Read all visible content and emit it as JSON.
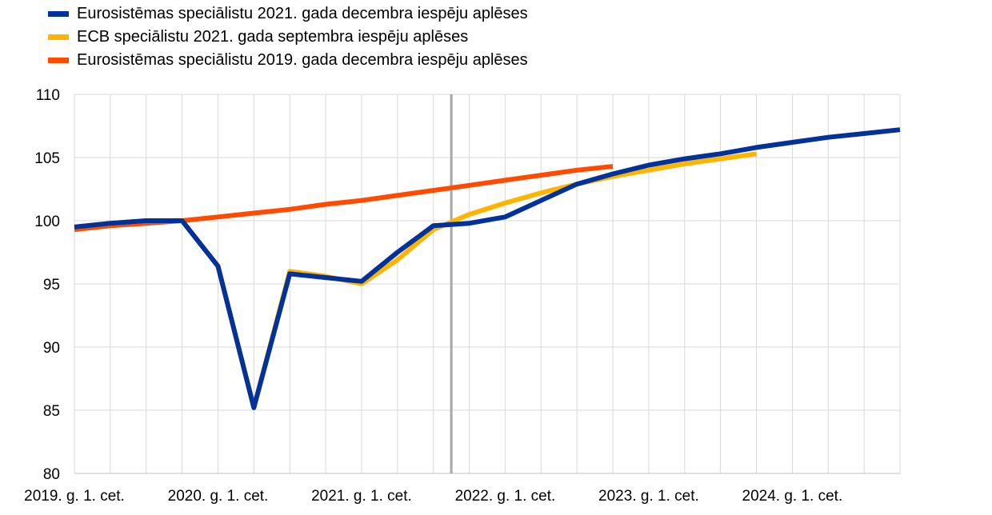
{
  "chart_data": {
    "type": "line",
    "title": "",
    "xlabel": "",
    "ylabel": "",
    "ylim": [
      80,
      110
    ],
    "yticks": [
      80,
      85,
      90,
      95,
      100,
      105,
      110
    ],
    "x_tick_labels": [
      "2019. g. 1. cet.",
      "2020. g. 1. cet.",
      "2021. g. 1. cet.",
      "2022. g. 1. cet.",
      "2023. g. 1. cet.",
      "2024. g. 1. cet."
    ],
    "x_tick_label_quarter_index": [
      0,
      4,
      8,
      12,
      16,
      20
    ],
    "quarters_count": 24,
    "vertical_marker_quarter_index": 10.5,
    "grid": true,
    "legend_position": "top-left",
    "series": [
      {
        "name": "Eurosistēmas speciālistu 2021. gada decembra iespēju aplēses",
        "color": "#003299",
        "values": [
          99.5,
          99.8,
          100.0,
          100.0,
          96.4,
          85.2,
          95.8,
          95.5,
          95.2,
          97.5,
          99.6,
          99.8,
          100.3,
          101.6,
          102.9,
          103.7,
          104.4,
          104.9,
          105.3,
          105.8,
          106.2,
          106.6,
          106.9,
          107.2
        ]
      },
      {
        "name": "ECB speciālistu 2021. gada septembra iespēju aplēses",
        "color": "#FFB400",
        "values": [
          99.5,
          99.8,
          100.0,
          100.0,
          96.4,
          85.2,
          96.0,
          95.6,
          95.0,
          96.9,
          99.3,
          100.5,
          101.4,
          102.2,
          102.9,
          103.5,
          104.0,
          104.5,
          104.9,
          105.3,
          null,
          null,
          null,
          null
        ]
      },
      {
        "name": "Eurosistēmas speciālistu 2019. gada decembra iespēju aplēses",
        "color": "#FF4B00",
        "values": [
          99.3,
          99.6,
          99.8,
          100.0,
          100.3,
          100.6,
          100.9,
          101.3,
          101.6,
          102.0,
          102.4,
          102.8,
          103.2,
          103.6,
          104.0,
          104.3,
          null,
          null,
          null,
          null,
          null,
          null,
          null,
          null
        ]
      }
    ]
  },
  "colors": {
    "grid": "#d9d9d9",
    "marker": "#a6a6a6"
  }
}
